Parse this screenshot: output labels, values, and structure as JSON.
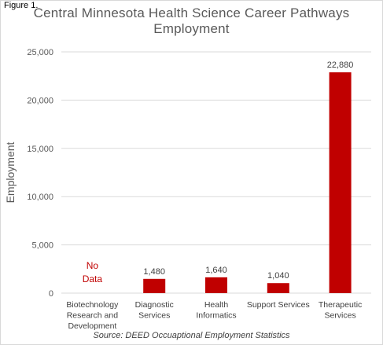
{
  "figure_label": "Figure 1.",
  "source": "Source: DEED Occuaptional Employment Statistics",
  "colors": {
    "bar": "#c00000",
    "no_data_text": "#c00000",
    "grid": "#d9d9d9",
    "axis_text": "#595959"
  },
  "chart_data": {
    "type": "bar",
    "title": "Central Minnesota Health Science Career Pathways Employment",
    "xlabel": "",
    "ylabel": "Employment",
    "ylim": [
      0,
      25000
    ],
    "yticks": [
      "0",
      "5,000",
      "10,000",
      "15,000",
      "20,000",
      "25,000"
    ],
    "grid": true,
    "categories": [
      "Biotechnology Research and Development",
      "Diagnostic Services",
      "Health Informatics",
      "Support Services",
      "Therapeutic Services"
    ],
    "category_lines": [
      [
        "Biotechnology",
        "Research and",
        "Development"
      ],
      [
        "Diagnostic",
        "Services"
      ],
      [
        "Health",
        "Informatics"
      ],
      [
        "Support Services"
      ],
      [
        "Therapeutic",
        "Services"
      ]
    ],
    "values": [
      null,
      1480,
      1640,
      1040,
      22880
    ],
    "data_labels": [
      "",
      "1,480",
      "1,640",
      "1,040",
      "22,880"
    ],
    "no_data_lines": [
      "No",
      "Data"
    ]
  }
}
